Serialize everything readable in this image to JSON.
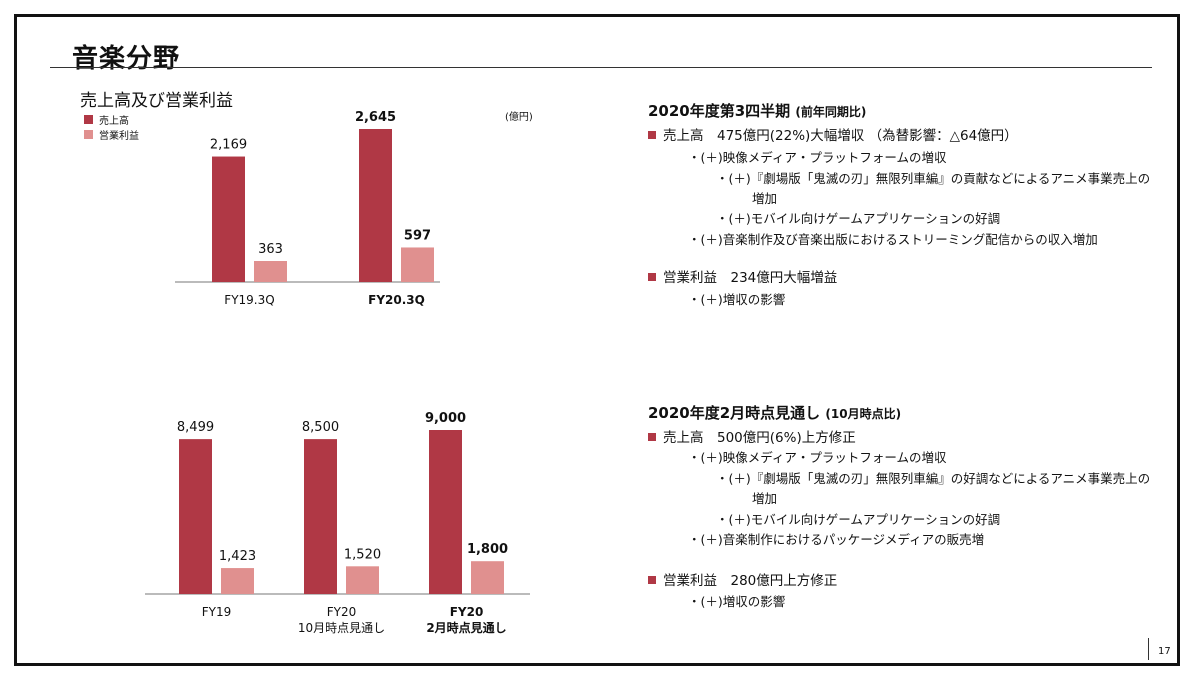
{
  "page": {
    "title": "音楽分野",
    "page_number": "17"
  },
  "colors": {
    "sales": "#b03845",
    "op_income": "#e0908f",
    "bullet": "#b03845"
  },
  "chart_data": [
    {
      "type": "bar",
      "title": "売上高及び営業利益",
      "unit": "(億円)",
      "legend": [
        "売上高",
        "営業利益"
      ],
      "categories": [
        {
          "lines": [
            "FY19.3Q"
          ],
          "bold": false
        },
        {
          "lines": [
            "FY20.3Q"
          ],
          "bold": true
        }
      ],
      "series": [
        {
          "name": "売上高",
          "values": [
            2169,
            2645
          ],
          "labels": [
            "2,169",
            "2,645"
          ]
        },
        {
          "name": "営業利益",
          "values": [
            363,
            597
          ],
          "labels": [
            "363",
            "597"
          ]
        }
      ]
    },
    {
      "type": "bar",
      "categories": [
        {
          "lines": [
            "FY19"
          ],
          "bold": false
        },
        {
          "lines": [
            "FY20",
            "10月時点見通し"
          ],
          "bold": false
        },
        {
          "lines": [
            "FY20",
            "2月時点見通し"
          ],
          "bold": true
        }
      ],
      "series": [
        {
          "name": "売上高",
          "values": [
            8499,
            8500,
            9000
          ],
          "labels": [
            "8,499",
            "8,500",
            "9,000"
          ]
        },
        {
          "name": "営業利益",
          "values": [
            1423,
            1520,
            1800
          ],
          "labels": [
            "1,423",
            "1,520",
            "1,800"
          ]
        }
      ]
    }
  ],
  "section1": {
    "title": "2020年度第3四半期",
    "title_note": "(前年同期比)",
    "sales_line": "売上高　475億円(22%)大幅増収 （為替影響：△64億円）",
    "sales_items": [
      "・(＋)映像メディア・プラットフォームの増収",
      "・(＋)『劇場版「鬼滅の刃」無限列車編』の貢献などによるアニメ事業売上の",
      "増加",
      "・(＋)モバイル向けゲームアプリケーションの好調",
      "・(＋)音楽制作及び音楽出版におけるストリーミング配信からの収入増加"
    ],
    "op_line": "営業利益　234億円大幅増益",
    "op_items": [
      "・(＋)増収の影響"
    ]
  },
  "section2": {
    "title": "2020年度2月時点見通し",
    "title_note": "(10月時点比)",
    "sales_line": "売上高　500億円(6%)上方修正",
    "sales_items": [
      "・(＋)映像メディア・プラットフォームの増収",
      "・(＋)『劇場版「鬼滅の刃」無限列車編』の好調などによるアニメ事業売上の",
      "増加",
      "・(＋)モバイル向けゲームアプリケーションの好調",
      "・(＋)音楽制作におけるパッケージメディアの販売増"
    ],
    "op_line": "営業利益　280億円上方修正",
    "op_items": [
      "・(＋)増収の影響"
    ]
  }
}
